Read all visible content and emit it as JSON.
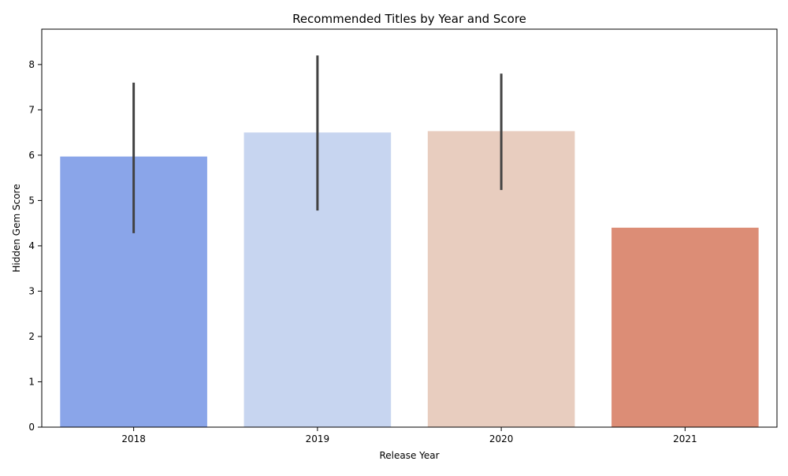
{
  "chart_data": {
    "type": "bar",
    "title": "Recommended Titles by Year and Score",
    "xlabel": "Release Year",
    "ylabel": "Hidden Gem Score",
    "categories": [
      "2018",
      "2019",
      "2020",
      "2021"
    ],
    "values": [
      5.97,
      6.5,
      6.53,
      4.4
    ],
    "error_bars": [
      {
        "low": 4.28,
        "high": 7.6
      },
      {
        "low": 4.78,
        "high": 8.2
      },
      {
        "low": 5.23,
        "high": 7.8
      },
      null
    ],
    "colors": [
      "#8aa5e9",
      "#c7d5f0",
      "#e8cdbf",
      "#dc8d76"
    ],
    "error_bar_color": "#424242",
    "ylim": [
      0,
      8.78
    ],
    "yticks": [
      0,
      1,
      2,
      3,
      4,
      5,
      6,
      7,
      8
    ],
    "grid": false,
    "legend": "none"
  }
}
